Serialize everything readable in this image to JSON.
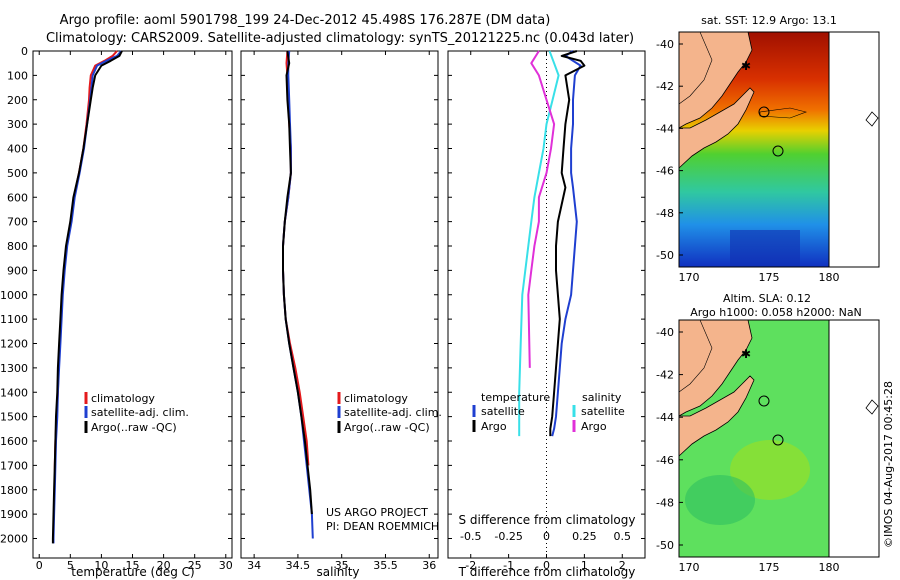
{
  "header": {
    "line1": "Argo profile: aoml 5901798_199 24-Dec-2012 45.498S 176.287E (DM data)",
    "line2": "Climatology: CARS2009. Satellite-adjusted climatology: synTS_20121225.nc (0.043d later)"
  },
  "colors": {
    "climatology": "#e41a1c",
    "satellite": "#1f3fd0",
    "argo": "#000000",
    "temp_sat": "#1f3fd0",
    "sal_sat": "#38e0e8",
    "sal_argo": "#e030d8",
    "land": "#f4b48c"
  },
  "chart_data": [
    {
      "id": "temperature",
      "type": "line",
      "xlabel": "temperature (deg C)",
      "ylabel": "",
      "xlim": [
        -1,
        31
      ],
      "ylim": [
        0,
        2080
      ],
      "xticks": [
        "0",
        "5",
        "10",
        "15",
        "20",
        "25",
        "30"
      ],
      "yticks": [
        "0",
        "100",
        "200",
        "300",
        "400",
        "500",
        "600",
        "700",
        "800",
        "900",
        "1000",
        "1100",
        "1200",
        "1300",
        "1400",
        "1500",
        "1600",
        "1700",
        "1800",
        "1900",
        "2000"
      ],
      "legend": [
        "climatology",
        "satellite-adj. clim.",
        "Argo(..raw -QC)"
      ],
      "legend_position": "bottom-center",
      "series": [
        {
          "name": "climatology",
          "color_key": "climatology",
          "x": [
            12.5,
            11.8,
            10.5,
            9.0,
            8.3,
            8.1,
            8.0,
            7.6,
            7.1,
            6.4,
            5.6,
            5.1,
            4.4,
            4.0,
            3.7,
            3.5,
            3.3,
            3.1,
            3.0,
            2.8,
            2.6,
            2.5,
            2.5
          ],
          "y": [
            0,
            20,
            40,
            60,
            100,
            150,
            200,
            300,
            400,
            500,
            600,
            700,
            800,
            900,
            1000,
            1100,
            1200,
            1300,
            1400,
            1500,
            1600,
            1700,
            1720
          ]
        },
        {
          "name": "satellite-adj. clim.",
          "color_key": "satellite",
          "x": [
            13.2,
            12.5,
            10.8,
            9.3,
            8.6,
            8.4,
            8.2,
            7.7,
            7.2,
            6.5,
            5.7,
            5.2,
            4.5,
            4.1,
            3.8,
            3.6,
            3.4,
            3.2,
            3.0,
            2.9,
            2.7,
            2.6,
            2.5,
            2.4,
            2.3,
            2.3
          ],
          "y": [
            0,
            20,
            40,
            60,
            100,
            150,
            200,
            300,
            400,
            500,
            600,
            700,
            800,
            900,
            1000,
            1100,
            1200,
            1300,
            1400,
            1500,
            1600,
            1700,
            1800,
            1900,
            2000,
            2020
          ]
        },
        {
          "name": "Argo(..raw -QC)",
          "color_key": "argo",
          "x": [
            13.3,
            12.9,
            11.5,
            10.0,
            9.0,
            8.6,
            8.3,
            7.7,
            7.1,
            6.4,
            5.5,
            5.0,
            4.3,
            3.9,
            3.6,
            3.4,
            3.2,
            3.0,
            2.9,
            2.7,
            2.6,
            2.5,
            2.4,
            2.3,
            2.2,
            2.2
          ],
          "y": [
            0,
            20,
            40,
            60,
            100,
            150,
            200,
            300,
            400,
            500,
            600,
            700,
            800,
            900,
            1000,
            1100,
            1200,
            1300,
            1400,
            1500,
            1600,
            1700,
            1800,
            1900,
            2000,
            2020
          ]
        }
      ]
    },
    {
      "id": "salinity",
      "type": "line",
      "xlabel": "salinity",
      "xlim": [
        33.85,
        36.1
      ],
      "ylim": [
        0,
        2080
      ],
      "xticks": [
        "34",
        "34.5",
        "35",
        "35.5",
        "36"
      ],
      "legend": [
        "climatology",
        "satellite-adj. clim.",
        "Argo(..raw -QC)"
      ],
      "legend_position": "bottom-center",
      "annotation": [
        "US ARGO PROJECT",
        "PI: DEAN ROEMMICH"
      ],
      "series": [
        {
          "name": "climatology",
          "color_key": "climatology",
          "x": [
            34.38,
            34.37,
            34.38,
            34.39,
            34.4,
            34.42,
            34.42,
            34.39,
            34.35,
            34.33,
            34.33,
            34.34,
            34.36,
            34.41,
            34.47,
            34.52,
            34.56,
            34.6,
            34.62
          ],
          "y": [
            0,
            50,
            100,
            200,
            300,
            400,
            500,
            600,
            700,
            800,
            900,
            1000,
            1100,
            1200,
            1300,
            1400,
            1500,
            1600,
            1700
          ]
        },
        {
          "name": "satellite-adj. clim.",
          "color_key": "satellite",
          "x": [
            34.4,
            34.39,
            34.39,
            34.4,
            34.41,
            34.42,
            34.42,
            34.39,
            34.35,
            34.33,
            34.33,
            34.34,
            34.36,
            34.4,
            34.45,
            34.5,
            34.54,
            34.57,
            34.6,
            34.63,
            34.66,
            34.67
          ],
          "y": [
            0,
            50,
            100,
            200,
            300,
            400,
            500,
            600,
            700,
            800,
            900,
            1000,
            1100,
            1200,
            1300,
            1400,
            1500,
            1600,
            1700,
            1800,
            1900,
            2000
          ]
        },
        {
          "name": "Argo(..raw -QC)",
          "color_key": "argo",
          "x": [
            34.38,
            34.4,
            34.37,
            34.38,
            34.4,
            34.41,
            34.42,
            34.38,
            34.35,
            34.33,
            34.33,
            34.34,
            34.36,
            34.4,
            34.45,
            34.5,
            34.54,
            34.58,
            34.61,
            34.64,
            34.66
          ],
          "y": [
            0,
            50,
            100,
            200,
            300,
            400,
            500,
            600,
            700,
            800,
            900,
            1000,
            1100,
            1200,
            1300,
            1400,
            1500,
            1600,
            1700,
            1800,
            1900
          ]
        }
      ]
    },
    {
      "id": "differences",
      "type": "line",
      "xlabel": "T difference from climatology",
      "top_label": "S difference from climatology",
      "xlim": [
        -2.6,
        2.6
      ],
      "ylim": [
        0,
        2080
      ],
      "xticks": [
        "-2",
        "-1",
        "0",
        "1",
        "2"
      ],
      "top_xticks": [
        "-0.5",
        "-0.25",
        "0",
        "0.25",
        "0.5"
      ],
      "legend_titles": [
        "temperature",
        "salinity"
      ],
      "legend": [
        [
          "satellite",
          "Argo"
        ],
        [
          "satellite",
          "Argo"
        ]
      ],
      "series": [
        {
          "name": "temperature satellite",
          "color_key": "temp_sat",
          "x": [
            0.7,
            0.5,
            0.7,
            0.9,
            0.75,
            0.7,
            0.7,
            0.65,
            0.65,
            0.7,
            0.8,
            0.75,
            0.7,
            0.65,
            0.5,
            0.4,
            0.35,
            0.3,
            0.25,
            0.2,
            0.15
          ],
          "y": [
            0,
            20,
            40,
            60,
            100,
            200,
            300,
            400,
            500,
            560,
            700,
            800,
            900,
            1000,
            1100,
            1200,
            1300,
            1400,
            1500,
            1550,
            1580
          ]
        },
        {
          "name": "temperature Argo",
          "color_key": "argo",
          "x": [
            0.8,
            0.4,
            0.9,
            1.0,
            0.5,
            0.6,
            0.5,
            0.45,
            0.4,
            0.5,
            0.3,
            0.25,
            0.25,
            0.3,
            0.35,
            0.3,
            0.25,
            0.2,
            0.15,
            0.1,
            0.1
          ],
          "y": [
            0,
            20,
            40,
            60,
            100,
            200,
            300,
            400,
            500,
            560,
            700,
            800,
            900,
            1000,
            1100,
            1200,
            1300,
            1400,
            1500,
            1550,
            1580
          ]
        },
        {
          "name": "salinity satellite",
          "color_key": "sal_sat",
          "x": [
            0.02,
            0.05,
            0.08,
            0.04,
            0.0,
            -0.02,
            -0.05,
            -0.08,
            -0.1,
            -0.12,
            -0.14,
            -0.16,
            -0.17,
            -0.18,
            -0.18
          ],
          "y": [
            0,
            50,
            100,
            200,
            300,
            400,
            500,
            600,
            700,
            800,
            900,
            1000,
            1200,
            1400,
            1580
          ]
        },
        {
          "name": "salinity Argo",
          "color_key": "sal_argo",
          "x": [
            -0.05,
            -0.1,
            -0.05,
            0.0,
            0.05,
            0.03,
            0.0,
            -0.05,
            -0.05,
            -0.08,
            -0.1,
            -0.12,
            -0.11
          ],
          "y": [
            0,
            50,
            100,
            200,
            300,
            400,
            500,
            600,
            700,
            800,
            900,
            1000,
            1300
          ]
        }
      ]
    }
  ],
  "map_sst": {
    "title": "sat. SST: 12.9 Argo: 13.1",
    "yticks": [
      "-40",
      "-42",
      "-44",
      "-46",
      "-48",
      "-50"
    ],
    "xticks": [
      "170",
      "175",
      "180"
    ]
  },
  "map_sla": {
    "title1": "Altim. SLA: 0.12",
    "title2": "Argo h1000: 0.058 h2000: NaN",
    "yticks": [
      "-40",
      "-42",
      "-44",
      "-46",
      "-48",
      "-50"
    ],
    "xticks": [
      "170",
      "175",
      "180"
    ]
  },
  "credit": "©IMOS 04-Aug-2017 00:45:28"
}
